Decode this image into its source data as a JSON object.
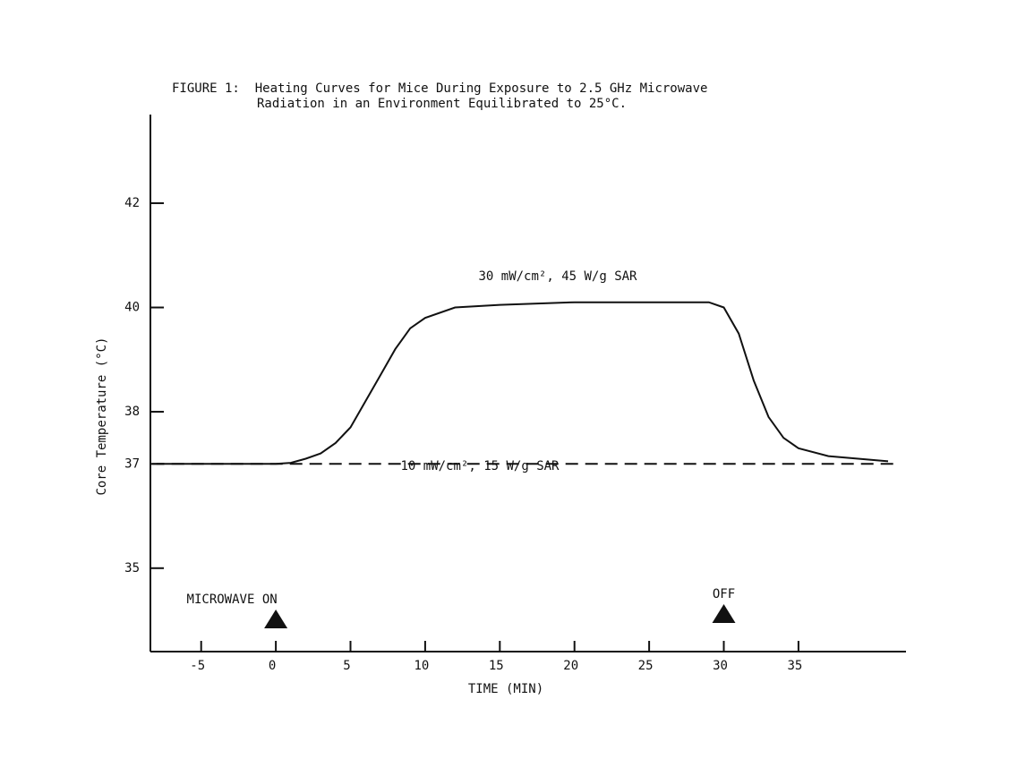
{
  "chart_data": {
    "type": "line",
    "title": "FIGURE 1:  Heating Curves for Mice During Exposure to 2.5 GHz Microwave",
    "subtitle": "Radiation in an Environment Equilibrated to 25°C.",
    "x_label": "TIME (MIN)",
    "y_label": "Core Temperature (°C)",
    "xlim": [
      -8.4,
      42.2
    ],
    "xticks": [
      -5,
      0,
      5,
      10,
      15,
      20,
      25,
      30,
      35
    ],
    "ylim": [
      33.4,
      43.7
    ],
    "yticks": [
      42,
      40,
      38,
      37,
      35
    ],
    "series": [
      {
        "name": "30 mW/cm², 45 W/g SAR",
        "color": "#111111",
        "line_style": "solid",
        "x": [
          -8,
          -4,
          0,
          1,
          2,
          3,
          4,
          5,
          6,
          7,
          8,
          9,
          10,
          12,
          15,
          20,
          25,
          29,
          30,
          31,
          32,
          33,
          34,
          35,
          37,
          41
        ],
        "values": [
          37.0,
          37.0,
          37.0,
          37.02,
          37.1,
          37.2,
          37.4,
          37.7,
          38.2,
          38.7,
          39.2,
          39.6,
          39.8,
          40.0,
          40.05,
          40.1,
          40.1,
          40.1,
          40.0,
          39.5,
          38.6,
          37.9,
          37.5,
          37.3,
          37.15,
          37.05
        ]
      },
      {
        "name": "10 mW/cm², 15 W/g SAR",
        "color": "#111111",
        "line_style": "dashed",
        "x": [
          -8.3,
          41.5
        ],
        "values": [
          37.0,
          37.0
        ]
      }
    ],
    "markers": [
      {
        "label": "MICROWAVE ON",
        "x": 0
      },
      {
        "label": "OFF",
        "x": 30
      }
    ]
  }
}
